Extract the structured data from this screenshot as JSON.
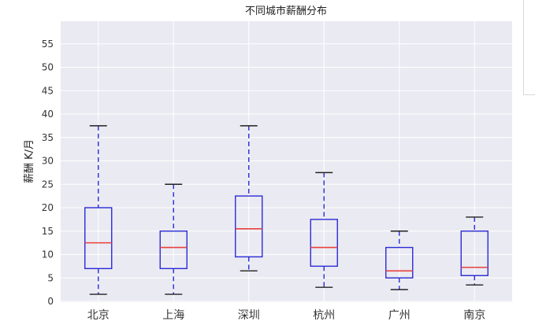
{
  "chart_data": {
    "type": "box",
    "title": "不同城市薪酬分布",
    "ylabel": "薪酬 K/月",
    "xlabel": "",
    "ylim": [
      0,
      60
    ],
    "yticks": [
      0,
      5,
      10,
      15,
      20,
      25,
      30,
      35,
      40,
      45,
      50,
      55
    ],
    "grid": true,
    "categories": [
      "北京",
      "上海",
      "深圳",
      "杭州",
      "广州",
      "南京"
    ],
    "boxes": [
      {
        "category": "北京",
        "whisker_low": 1.5,
        "q1": 7.0,
        "median": 12.5,
        "q3": 20.0,
        "whisker_high": 37.5
      },
      {
        "category": "上海",
        "whisker_low": 1.5,
        "q1": 7.0,
        "median": 11.5,
        "q3": 15.0,
        "whisker_high": 25.0
      },
      {
        "category": "深圳",
        "whisker_low": 6.5,
        "q1": 9.5,
        "median": 15.5,
        "q3": 22.5,
        "whisker_high": 37.5
      },
      {
        "category": "杭州",
        "whisker_low": 3.0,
        "q1": 7.5,
        "median": 11.5,
        "q3": 17.5,
        "whisker_high": 27.5
      },
      {
        "category": "广州",
        "whisker_low": 2.5,
        "q1": 5.0,
        "median": 6.5,
        "q3": 11.5,
        "whisker_high": 15.0
      },
      {
        "category": "南京",
        "whisker_low": 3.5,
        "q1": 5.5,
        "median": 7.25,
        "q3": 15.0,
        "whisker_high": 18.0
      }
    ],
    "colors": {
      "plot_background": "#eaeaf2",
      "grid": "#ffffff",
      "box": "#2b2bd6",
      "median": "#e8403f",
      "cap": "#222222"
    }
  }
}
